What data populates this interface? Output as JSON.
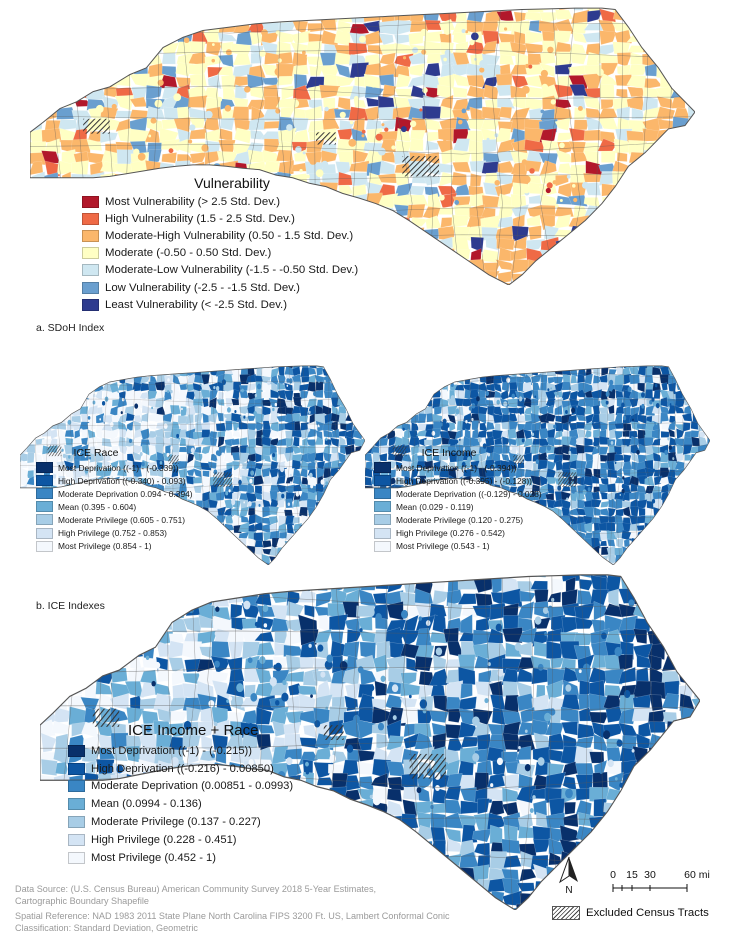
{
  "maps": {
    "sdoh": {
      "legend_title": "Vulnerability",
      "palette": [
        "#b2182b",
        "#ef6a46",
        "#fbb76b",
        "#ffffc4",
        "#cfe7f1",
        "#6a9fcf",
        "#2e3b8f"
      ],
      "weights": [
        2,
        6,
        30,
        38,
        17,
        5,
        2
      ],
      "classes": [
        "Most Vulnerability (> 2.5 Std. Dev.)",
        "High Vulnerability (1.5 - 2.5 Std. Dev.)",
        "Moderate-High Vulnerability (0.50 - 1.5 Std. Dev.)",
        "Moderate (-0.50 - 0.50 Std. Dev.)",
        "Moderate-Low Vulnerability (-1.5 - -0.50 Std. Dev.)",
        "Low Vulnerability (-2.5 - -1.5 Std. Dev.)",
        "Least Vulnerability (< -2.5 Std. Dev.)"
      ]
    },
    "race": {
      "legend_title": "ICE Race",
      "palette": [
        "#08306b",
        "#0d56a3",
        "#3a86c4",
        "#6aaed6",
        "#a8cde6",
        "#d4e4f4",
        "#f4f8fd"
      ],
      "weights": [
        4,
        9,
        18,
        16,
        14,
        14,
        25
      ],
      "classes": [
        "Most Deprivation ((-1) - (-0.339))",
        "High Deprivation ((-0.340) - 0.093)",
        "Moderate Deprivation 0.094 - 0.394)",
        "Mean (0.395 - 0.604)",
        "Moderate Privilege (0.605 - 0.751)",
        "High Privilege (0.752 - 0.853)",
        "Most Privilege (0.854 - 1)"
      ]
    },
    "income": {
      "legend_title": "ICE Income",
      "palette": [
        "#08306b",
        "#0d56a3",
        "#3a86c4",
        "#6aaed6",
        "#a8cde6",
        "#d4e4f4",
        "#f4f8fd"
      ],
      "weights": [
        10,
        34,
        26,
        12,
        9,
        6,
        3
      ],
      "classes": [
        "Most Deprivation ((-1) - (-0.394))",
        "High Deprivation ((-0.395) - (-0.128))",
        "Moderate Deprivation ((-0.129) - 0.028)",
        "Mean (0.029 - 0.119)",
        "Moderate Privilege (0.120 - 0.275)",
        "High Privilege (0.276 - 0.542)",
        "Most Privilege (0.543 - 1)"
      ]
    },
    "combined": {
      "legend_title": "ICE Income + Race",
      "palette": [
        "#08306b",
        "#0d56a3",
        "#3a86c4",
        "#6aaed6",
        "#a8cde6",
        "#d4e4f4",
        "#f4f8fd"
      ],
      "weights": [
        8,
        22,
        22,
        16,
        14,
        12,
        6
      ],
      "classes": [
        "Most Deprivation ((-1) - (-0.215))",
        "High Deprivation ((-0.216) - 0.00850)",
        "Moderate Deprivation (0.00851 - 0.0993)",
        "Mean (0.0994 - 0.136)",
        "Moderate Privilege (0.137 - 0.227)",
        "High Privilege (0.228 - 0.451)",
        "Most Privilege (0.452 - 1)"
      ]
    }
  },
  "panel_labels": {
    "a": "a. SDoH Index",
    "b": "b. ICE Indexes"
  },
  "sources": {
    "line1": "Data Source: (U.S. Census Bureau) American Community Survey 2018 5-Year Estimates,",
    "line2": "Cartographic Boundary Shapefile",
    "line3": "Spatial Reference: NAD 1983 2011 State Plane North Carolina FIPS 3200 Ft. US, Lambert Conformal Conic",
    "line4": "Classification: Standard Deviation, Geometric"
  },
  "scale": {
    "ticks": [
      "0",
      "15",
      "30",
      "60 mi"
    ]
  },
  "north_label": "N",
  "excluded_label": "Excluded Census Tracts"
}
